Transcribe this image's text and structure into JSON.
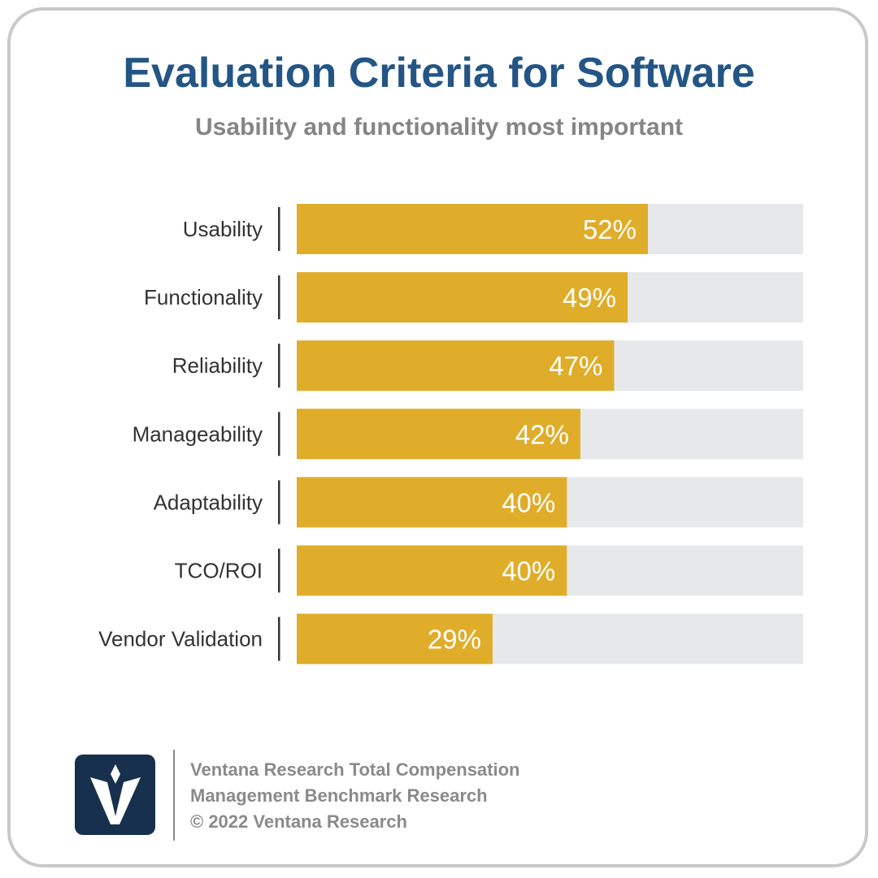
{
  "title": "Evaluation Criteria for Software",
  "subtitle": "Usability and functionality most important",
  "chart_data": {
    "type": "bar",
    "orientation": "horizontal",
    "title": "Evaluation Criteria for Software",
    "subtitle": "Usability and functionality most important",
    "categories": [
      "Usability",
      "Functionality",
      "Reliability",
      "Manageability",
      "Adaptability",
      "TCO/ROI",
      "Vendor Validation"
    ],
    "values": [
      52,
      49,
      47,
      42,
      40,
      40,
      29
    ],
    "value_labels": [
      "52%",
      "49%",
      "47%",
      "42%",
      "40%",
      "40%",
      "29%"
    ],
    "xlim": [
      0,
      75
    ],
    "grid": false,
    "legend": "none",
    "bar_color": "#dfad29",
    "track_color": "#e7e8ea"
  },
  "footer": {
    "line1": "Ventana Research Total Compensation",
    "line2": "Management Benchmark Research",
    "line3": "© 2022 Ventana Research"
  },
  "logo": {
    "icon": "ventana-v-logo-icon",
    "bg_color": "#16304d"
  }
}
